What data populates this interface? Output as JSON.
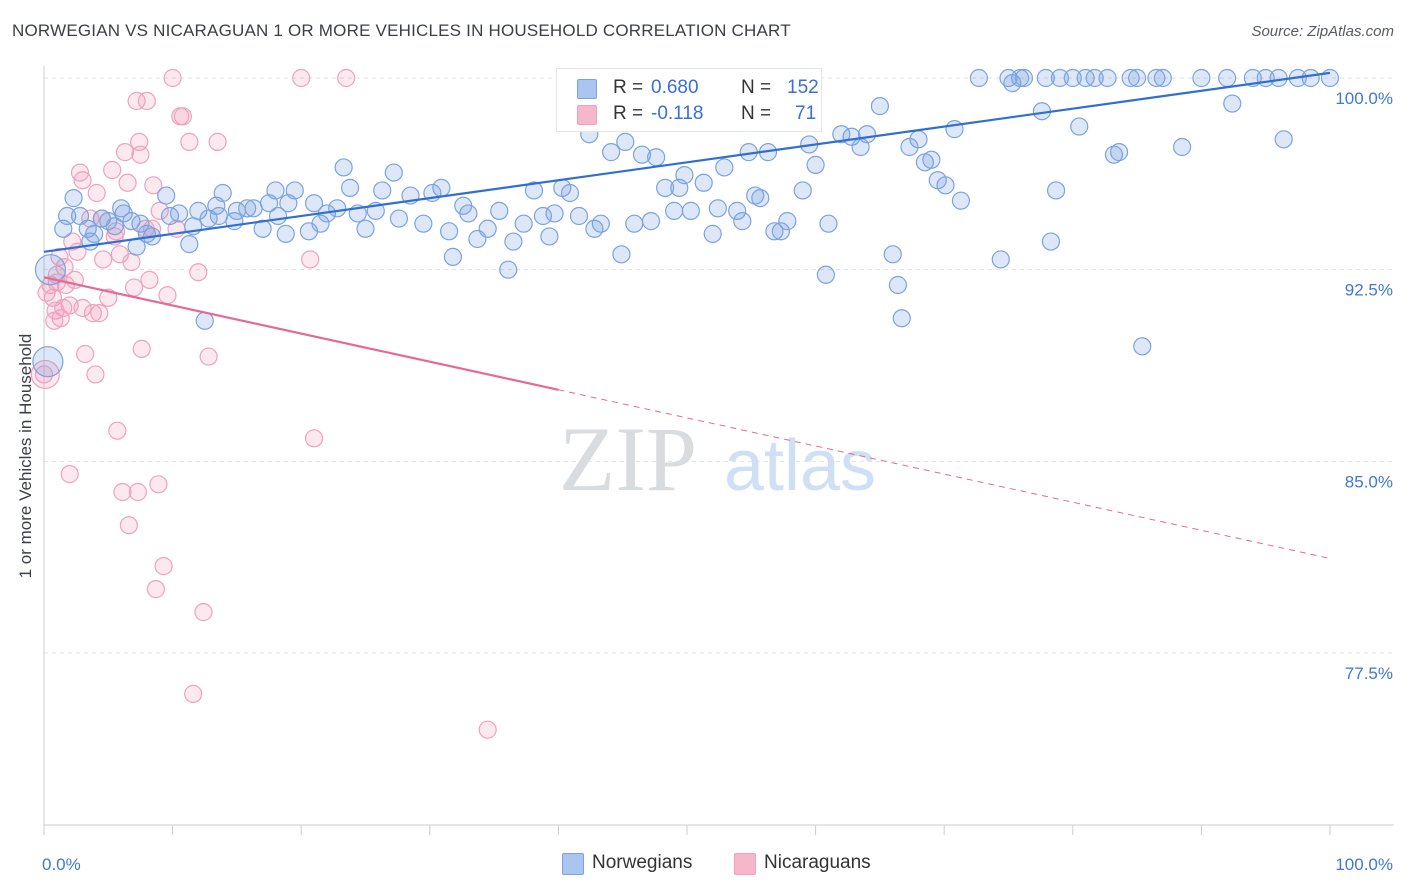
{
  "header": {
    "title": "NORWEGIAN VS NICARAGUAN 1 OR MORE VEHICLES IN HOUSEHOLD CORRELATION CHART",
    "source": "Source: ZipAtlas.com"
  },
  "watermark": {
    "zip": "ZIP",
    "atlas": "atlas"
  },
  "legend": {
    "r_label": "R =",
    "n_label": "N =",
    "rows": [
      {
        "r": "0.680",
        "n": "152",
        "color": "#a8c6f0"
      },
      {
        "r": "-0.118",
        "n": "71",
        "color": "#f6b7cb"
      }
    ]
  },
  "bottom_legend": [
    {
      "label": "Norwegians",
      "color": "#a8c6f0"
    },
    {
      "label": "Nicaraguans",
      "color": "#f6b7cb"
    }
  ],
  "colors": {
    "norwegian_fill": "rgba(120,160,225,0.25)",
    "norwegian_stroke": "#7aa3e0",
    "norwegian_line": "#2f6fd0",
    "nicaraguan_fill": "rgba(240,150,180,0.22)",
    "nicaraguan_stroke": "#eea2bd",
    "nicaraguan_line": "#e36a97",
    "tick_text": "#3f78d6",
    "grid": "#dde1e6"
  },
  "chart_data": {
    "type": "scatter",
    "title": "NORWEGIAN VS NICARAGUAN 1 OR MORE VEHICLES IN HOUSEHOLD CORRELATION CHART",
    "xlabel": "",
    "ylabel": "1 or more Vehicles in Household",
    "xlim": [
      0,
      100
    ],
    "ylim": [
      70,
      101.2
    ],
    "x_tick_labels": [
      "0.0%",
      "100.0%"
    ],
    "y_ticks": [
      77.5,
      85.0,
      92.5,
      100.0
    ],
    "y_tick_labels": [
      "77.5%",
      "85.0%",
      "92.5%",
      "100.0%"
    ],
    "grid": true,
    "legend_position": "top-center",
    "series": [
      {
        "name": "Norwegians",
        "n": 152,
        "r": 0.68,
        "trend": {
          "x": [
            0,
            100
          ],
          "y": [
            93.2,
            100.2
          ]
        },
        "points": [
          [
            0.3,
            88.9
          ],
          [
            0.5,
            92.5
          ],
          [
            1.5,
            94.1
          ],
          [
            1.8,
            94.6
          ],
          [
            2.3,
            95.3
          ],
          [
            2.8,
            94.6
          ],
          [
            3.4,
            94.1
          ],
          [
            3.6,
            93.6
          ],
          [
            3.9,
            93.9
          ],
          [
            4.5,
            94.5
          ],
          [
            5.0,
            94.4
          ],
          [
            5.5,
            94.2
          ],
          [
            6.0,
            94.9
          ],
          [
            6.2,
            94.7
          ],
          [
            6.8,
            94.4
          ],
          [
            7.2,
            93.4
          ],
          [
            7.5,
            94.3
          ],
          [
            8.0,
            93.9
          ],
          [
            8.4,
            93.8
          ],
          [
            9.5,
            95.4
          ],
          [
            9.8,
            94.6
          ],
          [
            10.5,
            94.7
          ],
          [
            11.3,
            93.5
          ],
          [
            11.6,
            94.2
          ],
          [
            12.0,
            94.8
          ],
          [
            12.5,
            90.5
          ],
          [
            12.8,
            94.5
          ],
          [
            13.4,
            95.0
          ],
          [
            13.6,
            94.6
          ],
          [
            13.9,
            95.5
          ],
          [
            14.8,
            94.4
          ],
          [
            15.0,
            94.8
          ],
          [
            15.8,
            94.9
          ],
          [
            16.3,
            94.9
          ],
          [
            17.0,
            94.1
          ],
          [
            17.5,
            95.1
          ],
          [
            18.0,
            95.6
          ],
          [
            18.2,
            94.6
          ],
          [
            18.8,
            93.9
          ],
          [
            19.0,
            95.1
          ],
          [
            19.5,
            95.6
          ],
          [
            20.6,
            94.0
          ],
          [
            21.0,
            95.1
          ],
          [
            21.5,
            94.3
          ],
          [
            22.0,
            94.7
          ],
          [
            22.8,
            94.9
          ],
          [
            23.3,
            96.5
          ],
          [
            23.8,
            95.7
          ],
          [
            24.4,
            94.7
          ],
          [
            25.0,
            94.1
          ],
          [
            25.8,
            94.8
          ],
          [
            26.3,
            95.6
          ],
          [
            27.2,
            96.3
          ],
          [
            27.6,
            94.5
          ],
          [
            28.5,
            95.4
          ],
          [
            29.5,
            94.3
          ],
          [
            30.2,
            95.5
          ],
          [
            30.9,
            95.7
          ],
          [
            31.5,
            94.0
          ],
          [
            31.8,
            93.0
          ],
          [
            32.6,
            95.0
          ],
          [
            33.0,
            94.7
          ],
          [
            33.7,
            93.7
          ],
          [
            34.5,
            94.1
          ],
          [
            35.4,
            94.8
          ],
          [
            36.1,
            92.5
          ],
          [
            36.5,
            93.6
          ],
          [
            37.3,
            94.3
          ],
          [
            38.1,
            95.6
          ],
          [
            38.8,
            94.6
          ],
          [
            39.3,
            93.8
          ],
          [
            39.7,
            94.7
          ],
          [
            40.3,
            95.7
          ],
          [
            40.9,
            95.5
          ],
          [
            41.6,
            94.6
          ],
          [
            42.4,
            97.8
          ],
          [
            42.8,
            94.1
          ],
          [
            43.3,
            94.3
          ],
          [
            44.1,
            97.1
          ],
          [
            44.9,
            93.1
          ],
          [
            45.2,
            97.5
          ],
          [
            45.9,
            94.3
          ],
          [
            46.5,
            97.0
          ],
          [
            47.2,
            94.4
          ],
          [
            47.6,
            96.9
          ],
          [
            48.3,
            95.7
          ],
          [
            49.0,
            94.8
          ],
          [
            49.4,
            95.7
          ],
          [
            49.8,
            96.2
          ],
          [
            50.3,
            94.8
          ],
          [
            51.3,
            95.9
          ],
          [
            52.0,
            93.9
          ],
          [
            52.4,
            94.9
          ],
          [
            52.9,
            96.5
          ],
          [
            53.9,
            94.8
          ],
          [
            54.3,
            94.4
          ],
          [
            54.8,
            97.1
          ],
          [
            55.3,
            95.4
          ],
          [
            55.7,
            95.3
          ],
          [
            56.3,
            97.1
          ],
          [
            56.8,
            94.0
          ],
          [
            57.3,
            94.0
          ],
          [
            57.8,
            94.4
          ],
          [
            59.0,
            95.6
          ],
          [
            59.5,
            97.4
          ],
          [
            60.0,
            96.6
          ],
          [
            60.8,
            92.3
          ],
          [
            61.0,
            94.3
          ],
          [
            62.0,
            97.8
          ],
          [
            62.8,
            97.7
          ],
          [
            63.5,
            97.3
          ],
          [
            64.0,
            97.8
          ],
          [
            65.0,
            98.9
          ],
          [
            66.0,
            93.1
          ],
          [
            66.4,
            91.9
          ],
          [
            66.7,
            90.6
          ],
          [
            67.3,
            97.3
          ],
          [
            68.0,
            97.6
          ],
          [
            68.5,
            96.7
          ],
          [
            69.0,
            96.8
          ],
          [
            69.5,
            96.0
          ],
          [
            70.1,
            95.8
          ],
          [
            70.8,
            98.0
          ],
          [
            71.3,
            95.2
          ],
          [
            72.7,
            100.0
          ],
          [
            74.4,
            92.9
          ],
          [
            75.0,
            100.0
          ],
          [
            75.3,
            99.8
          ],
          [
            75.9,
            100.0
          ],
          [
            76.2,
            100.0
          ],
          [
            77.6,
            98.7
          ],
          [
            77.9,
            100.0
          ],
          [
            78.3,
            93.6
          ],
          [
            78.7,
            95.6
          ],
          [
            79.0,
            100.0
          ],
          [
            80.0,
            100.0
          ],
          [
            80.5,
            98.1
          ],
          [
            81.0,
            100.0
          ],
          [
            81.7,
            100.0
          ],
          [
            82.7,
            100.0
          ],
          [
            83.2,
            97.0
          ],
          [
            83.6,
            97.1
          ],
          [
            84.5,
            100.0
          ],
          [
            85.0,
            100.0
          ],
          [
            85.4,
            89.5
          ],
          [
            86.5,
            100.0
          ],
          [
            87.0,
            100.0
          ],
          [
            88.5,
            97.3
          ],
          [
            90.0,
            100.0
          ],
          [
            92.0,
            100.0
          ],
          [
            92.4,
            99.0
          ],
          [
            94.0,
            100.0
          ],
          [
            95.0,
            100.0
          ],
          [
            96.0,
            100.0
          ],
          [
            96.4,
            97.6
          ],
          [
            97.5,
            100.0
          ],
          [
            98.5,
            100.0
          ],
          [
            100.0,
            100.0
          ]
        ]
      },
      {
        "name": "Nicaraguans",
        "n": 71,
        "r": -0.118,
        "trend": {
          "x": [
            0,
            40
          ],
          "y": [
            92.2,
            87.8
          ]
        },
        "trend_dashed": {
          "x": [
            40,
            100
          ],
          "y": [
            87.8,
            81.2
          ]
        },
        "points": [
          [
            0.0,
            88.4
          ],
          [
            0.2,
            91.6
          ],
          [
            0.5,
            91.9
          ],
          [
            0.7,
            91.4
          ],
          [
            0.9,
            90.9
          ],
          [
            1.0,
            92.3
          ],
          [
            1.3,
            90.6
          ],
          [
            1.5,
            91.0
          ],
          [
            1.6,
            92.6
          ],
          [
            1.7,
            91.9
          ],
          [
            2.0,
            91.1
          ],
          [
            2.2,
            93.6
          ],
          [
            2.4,
            92.1
          ],
          [
            2.6,
            93.2
          ],
          [
            2.8,
            96.3
          ],
          [
            3.0,
            91.0
          ],
          [
            3.2,
            89.2
          ],
          [
            3.6,
            94.5
          ],
          [
            3.8,
            90.8
          ],
          [
            4.0,
            88.4
          ],
          [
            4.1,
            95.5
          ],
          [
            4.3,
            90.8
          ],
          [
            4.6,
            92.9
          ],
          [
            5.0,
            91.4
          ],
          [
            5.3,
            96.4
          ],
          [
            5.6,
            94.0
          ],
          [
            5.7,
            86.2
          ],
          [
            5.9,
            93.1
          ],
          [
            6.1,
            83.8
          ],
          [
            6.3,
            97.1
          ],
          [
            6.5,
            95.9
          ],
          [
            6.6,
            82.5
          ],
          [
            6.8,
            92.8
          ],
          [
            7.0,
            91.8
          ],
          [
            7.2,
            99.1
          ],
          [
            7.3,
            83.8
          ],
          [
            7.4,
            97.5
          ],
          [
            7.5,
            97.0
          ],
          [
            7.6,
            89.4
          ],
          [
            7.9,
            94.1
          ],
          [
            8.0,
            99.1
          ],
          [
            8.2,
            92.1
          ],
          [
            8.4,
            94.1
          ],
          [
            8.5,
            95.8
          ],
          [
            8.7,
            80.0
          ],
          [
            8.9,
            84.1
          ],
          [
            9.0,
            94.8
          ],
          [
            9.3,
            80.9
          ],
          [
            9.6,
            91.5
          ],
          [
            10.0,
            100.0
          ],
          [
            10.3,
            94.1
          ],
          [
            10.6,
            98.5
          ],
          [
            10.8,
            98.5
          ],
          [
            11.3,
            97.5
          ],
          [
            11.6,
            75.9
          ],
          [
            12.0,
            92.4
          ],
          [
            12.4,
            79.1
          ],
          [
            12.8,
            89.1
          ],
          [
            13.5,
            97.5
          ],
          [
            20.0,
            100.0
          ],
          [
            20.7,
            92.9
          ],
          [
            21.0,
            85.9
          ],
          [
            23.5,
            100.0
          ],
          [
            34.5,
            74.5
          ],
          [
            1.0,
            92.0
          ],
          [
            2.0,
            84.5
          ],
          [
            3.0,
            96.0
          ],
          [
            4.5,
            94.5
          ],
          [
            5.5,
            93.8
          ],
          [
            0.8,
            90.5
          ],
          [
            1.2,
            93.0
          ]
        ]
      }
    ]
  }
}
